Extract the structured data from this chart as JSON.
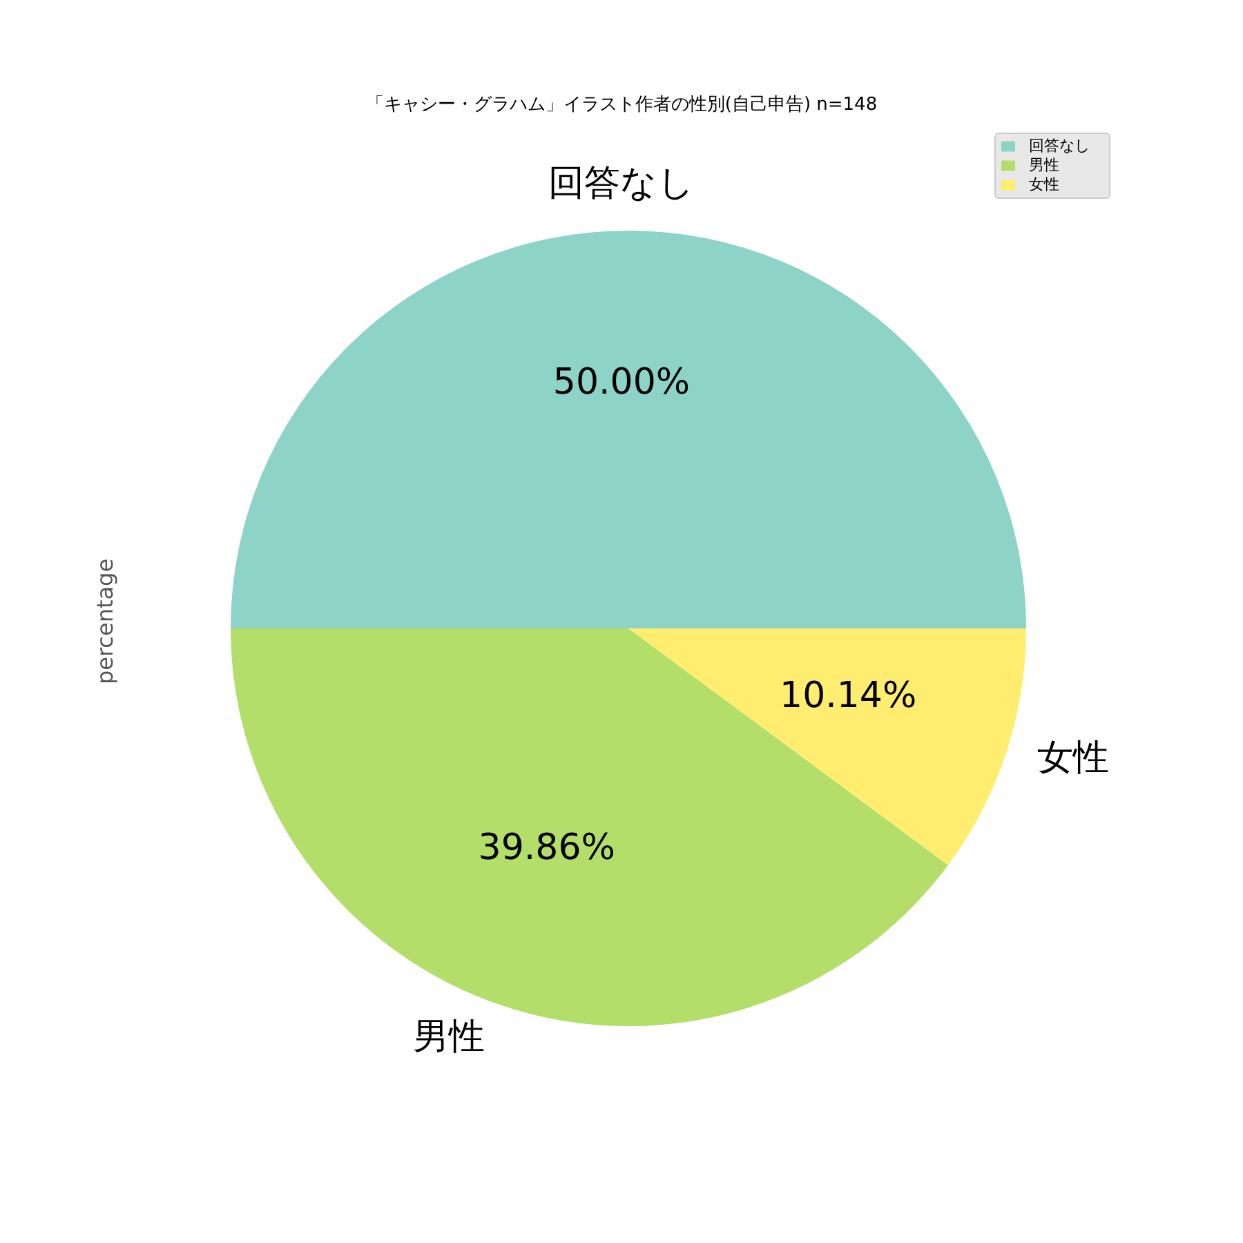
{
  "chart_data": {
    "type": "pie",
    "title": "「キャシー・グラハム」イラスト作者の性別(自己申告) n=148",
    "ylabel": "percentage",
    "categories": [
      "回答なし",
      "男性",
      "女性"
    ],
    "values": [
      50,
      39.86,
      10.14
    ],
    "colors": [
      "#8dd3c7",
      "#b3de69",
      "#ffed6f"
    ],
    "value_labels": [
      "50.00%",
      "39.86%",
      "10.14%"
    ],
    "legend": "top right"
  }
}
